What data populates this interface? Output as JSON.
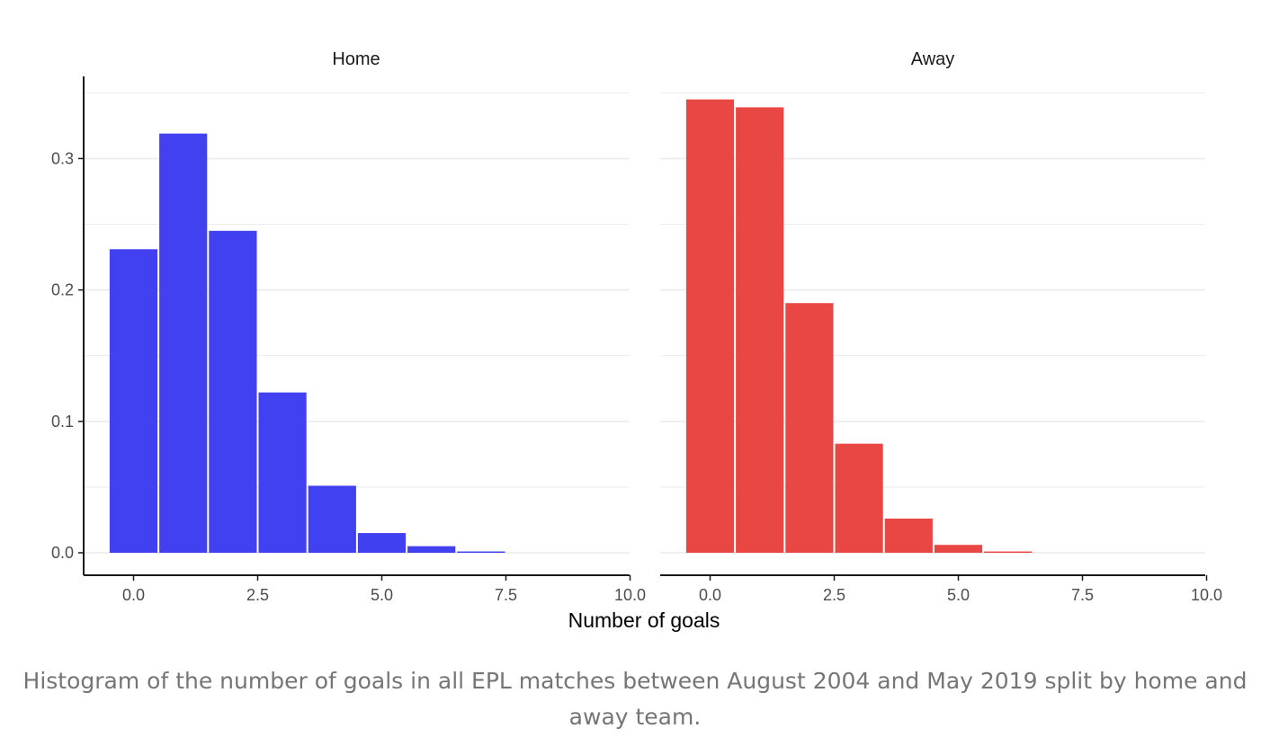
{
  "chart_data": {
    "type": "bar",
    "xlabel": "Number of goals",
    "ylabel": "",
    "grid": true,
    "legend": "none",
    "xlim": [
      -1,
      10
    ],
    "ylim": [
      0,
      0.35
    ],
    "x_ticks": [
      "0.0",
      "2.5",
      "5.0",
      "7.5",
      "10.0"
    ],
    "y_ticks": [
      "0.0",
      "0.1",
      "0.2",
      "0.3"
    ],
    "panels": [
      {
        "title": "Home",
        "color": "#3b3bf2",
        "x": [
          0,
          1,
          2,
          3,
          4,
          5,
          6,
          7
        ],
        "values": [
          0.231,
          0.319,
          0.245,
          0.122,
          0.051,
          0.015,
          0.005,
          0.001
        ]
      },
      {
        "title": "Away",
        "color": "#e8413e",
        "x": [
          0,
          1,
          2,
          3,
          4,
          5,
          6,
          7
        ],
        "values": [
          0.345,
          0.339,
          0.19,
          0.083,
          0.026,
          0.006,
          0.001,
          0
        ]
      }
    ]
  },
  "caption": "Histogram of the number of goals in all EPL matches between August 2004 and May 2019 split by home and away team."
}
